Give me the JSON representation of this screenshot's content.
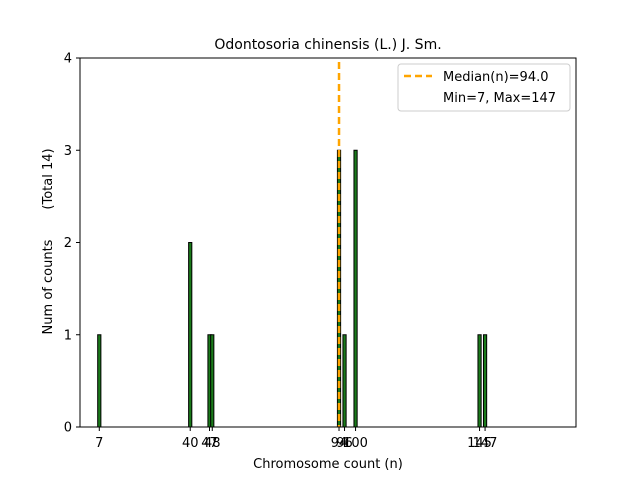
{
  "chart_data": {
    "type": "bar",
    "title": "Odontosoria chinensis (L.) J. Sm.",
    "xlabel": "Chromosome count (n)",
    "ylabel": "Num of counts",
    "ylabel_total": "(Total 14)",
    "xlim": [
      0,
      180
    ],
    "ylim": [
      0,
      4
    ],
    "yticks": [
      0,
      1,
      2,
      3,
      4
    ],
    "xticks": [
      7,
      40,
      47,
      48,
      94,
      96,
      100,
      145,
      147
    ],
    "bars": [
      {
        "x": 7,
        "count": 1
      },
      {
        "x": 40,
        "count": 2
      },
      {
        "x": 47,
        "count": 1
      },
      {
        "x": 48,
        "count": 1
      },
      {
        "x": 94,
        "count": 3
      },
      {
        "x": 96,
        "count": 1
      },
      {
        "x": 100,
        "count": 3
      },
      {
        "x": 145,
        "count": 1
      },
      {
        "x": 147,
        "count": 1
      }
    ],
    "median": 94.0,
    "legend": {
      "position": "top-right",
      "median_label": "Median(n)=94.0",
      "range_label": "Min=7, Max=147"
    },
    "colors": {
      "bar_fill": "#1a7a1a",
      "bar_edge": "#000000",
      "median_line": "#ffa500"
    }
  }
}
